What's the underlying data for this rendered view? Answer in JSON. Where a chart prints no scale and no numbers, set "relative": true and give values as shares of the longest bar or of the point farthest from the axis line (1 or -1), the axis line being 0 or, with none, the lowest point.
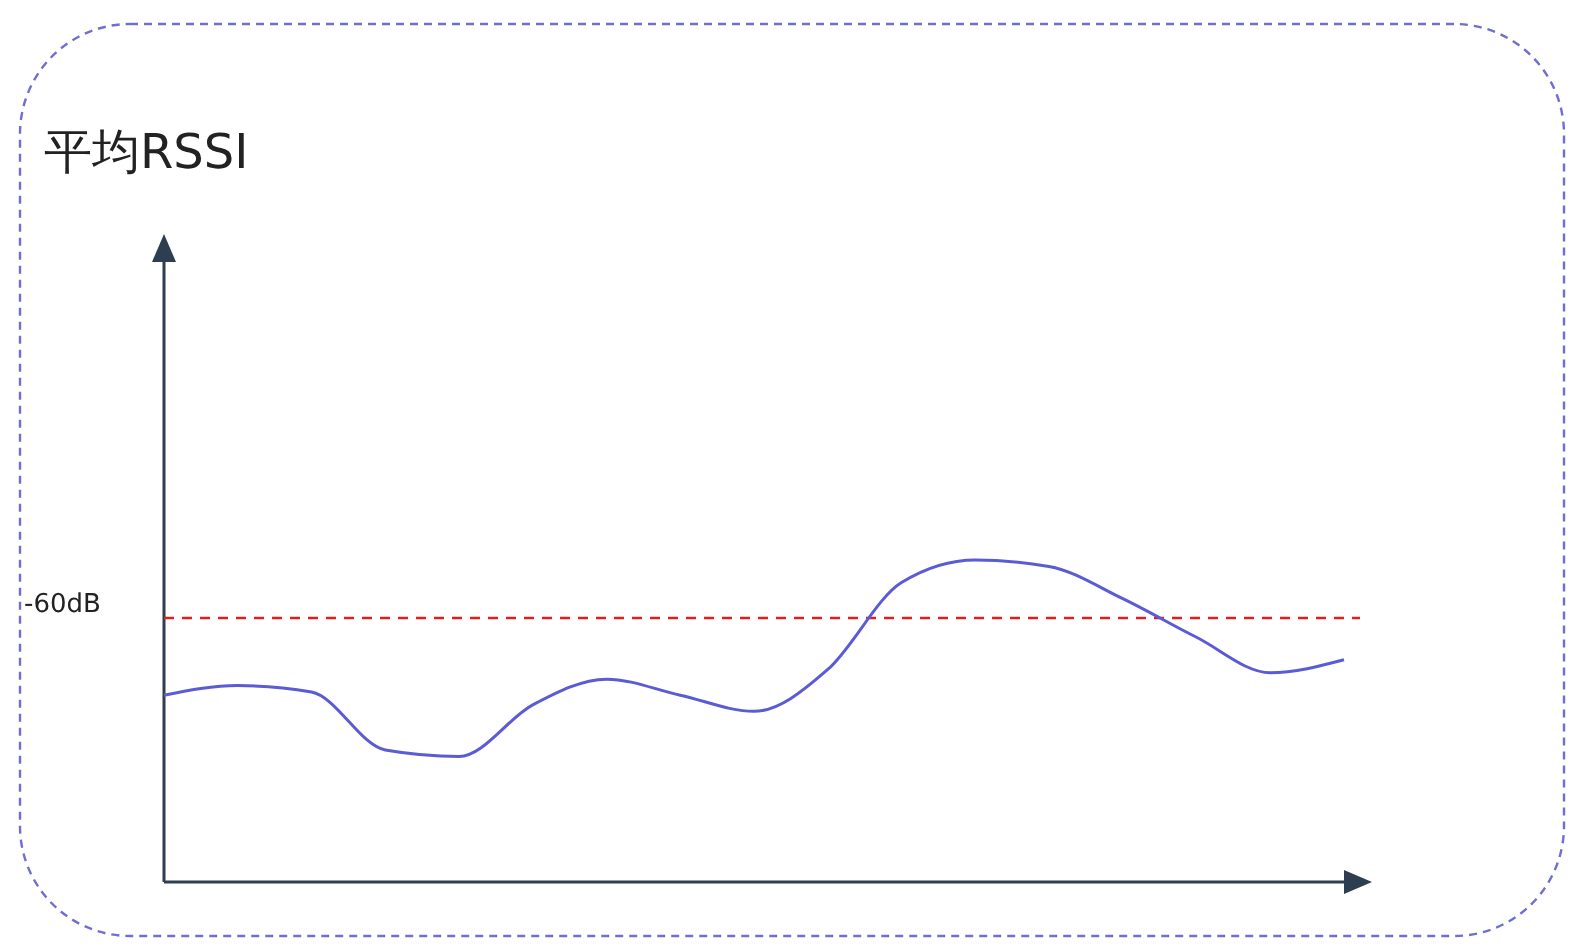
{
  "chart_data": {
    "type": "line",
    "title": "平均RSSI",
    "relative": true,
    "categories": [
      null,
      null,
      null,
      null,
      null,
      null,
      null,
      null,
      null,
      null,
      null,
      null,
      null,
      null,
      null,
      null,
      null
    ],
    "series": [
      {
        "color": "#5b5bd6",
        "values": [
          0.58,
          0.61,
          0.59,
          0.41,
          0.39,
          0.55,
          0.63,
          0.58,
          0.53,
          0.66,
          0.93,
          1,
          0.98,
          0.88,
          0.76,
          0.65,
          0.69
        ]
      }
    ],
    "ref_lines": [
      {
        "axis": "y",
        "value": 0.82,
        "label": "-60dB",
        "color": "#e02020",
        "line_style": "dashed"
      }
    ],
    "marker": "none",
    "line_style": "solid"
  }
}
